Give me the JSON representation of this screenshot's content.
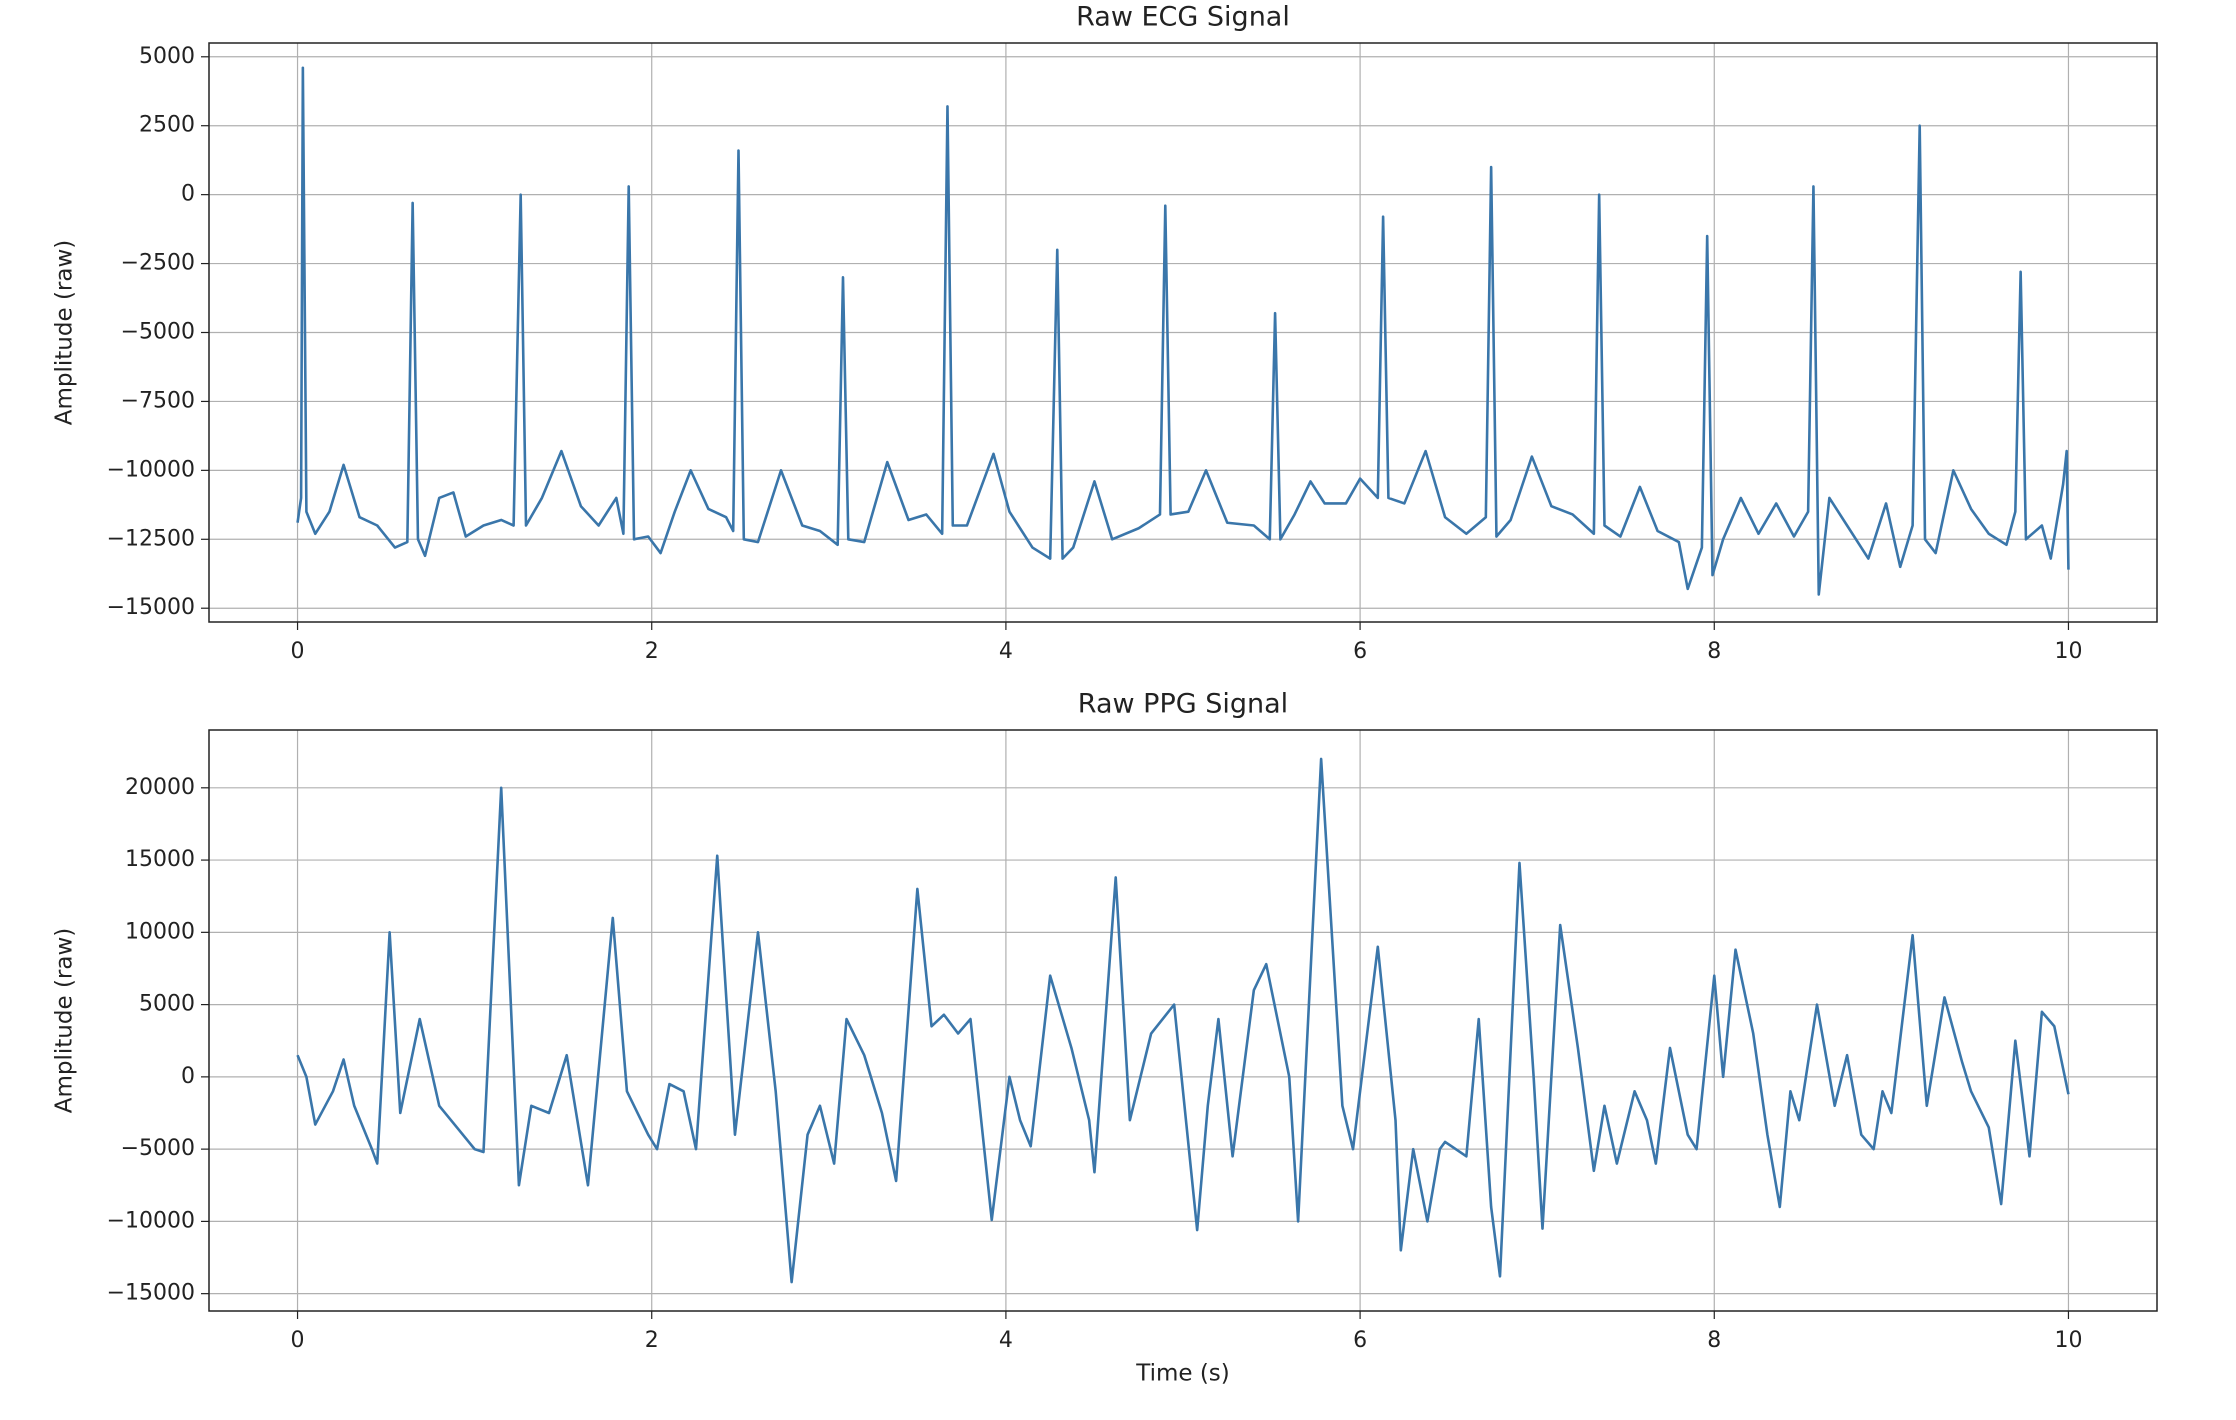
{
  "chart_data": [
    {
      "type": "line",
      "title": "Raw ECG Signal",
      "y_label": "Amplitude (raw)",
      "color": "#3a76aa",
      "grid": true,
      "xlim": [
        -0.5,
        10.5
      ],
      "ylim": [
        -15500,
        5500
      ],
      "xticks": [
        0,
        2,
        4,
        6,
        8,
        10
      ],
      "yticks": [
        5000,
        2500,
        0,
        {
          "value": -2500,
          "label": "−2500"
        },
        {
          "value": -5000,
          "label": "−5000"
        },
        {
          "value": -7500,
          "label": "−7500"
        },
        {
          "value": -10000,
          "label": "−10000"
        },
        {
          "value": -12500,
          "label": "−12500"
        },
        {
          "value": -15000,
          "label": "−15000"
        }
      ],
      "x": [
        0.0,
        0.02,
        0.03,
        0.05,
        0.1,
        0.18,
        0.26,
        0.35,
        0.45,
        0.55,
        0.62,
        0.65,
        0.68,
        0.72,
        0.8,
        0.88,
        0.95,
        1.05,
        1.15,
        1.22,
        1.26,
        1.29,
        1.38,
        1.49,
        1.6,
        1.7,
        1.8,
        1.84,
        1.87,
        1.9,
        1.98,
        2.05,
        2.13,
        2.22,
        2.32,
        2.42,
        2.46,
        2.49,
        2.52,
        2.6,
        2.73,
        2.85,
        2.95,
        3.05,
        3.08,
        3.11,
        3.2,
        3.33,
        3.45,
        3.55,
        3.64,
        3.67,
        3.7,
        3.78,
        3.93,
        4.02,
        4.15,
        4.25,
        4.29,
        4.32,
        4.38,
        4.5,
        4.6,
        4.75,
        4.87,
        4.9,
        4.93,
        5.03,
        5.13,
        5.25,
        5.4,
        5.49,
        5.52,
        5.55,
        5.63,
        5.72,
        5.8,
        5.92,
        6.0,
        6.1,
        6.13,
        6.16,
        6.25,
        6.37,
        6.48,
        6.6,
        6.71,
        6.74,
        6.77,
        6.85,
        6.97,
        7.08,
        7.2,
        7.32,
        7.35,
        7.38,
        7.47,
        7.58,
        7.68,
        7.8,
        7.85,
        7.93,
        7.96,
        7.99,
        8.05,
        8.15,
        8.25,
        8.35,
        8.45,
        8.53,
        8.56,
        8.59,
        8.65,
        8.75,
        8.87,
        8.97,
        9.05,
        9.12,
        9.16,
        9.19,
        9.25,
        9.35,
        9.45,
        9.55,
        9.65,
        9.7,
        9.73,
        9.76,
        9.85,
        9.9,
        9.97,
        9.99,
        10.0
      ],
      "values": [
        -11900,
        -11000,
        4600,
        -11500,
        -12300,
        -11500,
        -9800,
        -11700,
        -12000,
        -12800,
        -12600,
        -300,
        -12500,
        -13100,
        -11000,
        -10800,
        -12400,
        -12000,
        -11800,
        -12000,
        0,
        -12000,
        -11000,
        -9300,
        -11300,
        -12000,
        -11000,
        -12300,
        300,
        -12500,
        -12400,
        -13000,
        -11500,
        -10000,
        -11400,
        -11700,
        -12200,
        1600,
        -12500,
        -12600,
        -10000,
        -12000,
        -12200,
        -12700,
        -3000,
        -12500,
        -12600,
        -9700,
        -11800,
        -11600,
        -12300,
        3200,
        -12000,
        -12000,
        -9400,
        -11500,
        -12800,
        -13200,
        -2000,
        -13200,
        -12800,
        -10400,
        -12500,
        -12100,
        -11600,
        -400,
        -11600,
        -11500,
        -10000,
        -11900,
        -12000,
        -12500,
        -4300,
        -12500,
        -11600,
        -10400,
        -11200,
        -11200,
        -10300,
        -11000,
        -800,
        -11000,
        -11200,
        -9300,
        -11700,
        -12300,
        -11700,
        1000,
        -12400,
        -11800,
        -9500,
        -11300,
        -11600,
        -12300,
        0,
        -12000,
        -12400,
        -10600,
        -12200,
        -12600,
        -14300,
        -12800,
        -1500,
        -13800,
        -12500,
        -11000,
        -12300,
        -11200,
        -12400,
        -11500,
        300,
        -14500,
        -11000,
        -12000,
        -13200,
        -11200,
        -13500,
        -12000,
        2500,
        -12500,
        -13000,
        -10000,
        -11400,
        -12300,
        -12700,
        -11500,
        -2800,
        -12500,
        -12000,
        -13200,
        -10500,
        -9300,
        -13600
      ]
    },
    {
      "type": "line",
      "title": "Raw PPG Signal",
      "y_label": "Amplitude (raw)",
      "x_label": "Time (s)",
      "color": "#3a76aa",
      "grid": true,
      "xlim": [
        -0.5,
        10.5
      ],
      "ylim": [
        -16200,
        24000
      ],
      "xticks": [
        0,
        2,
        4,
        6,
        8,
        10
      ],
      "yticks": [
        20000,
        15000,
        10000,
        5000,
        0,
        {
          "value": -5000,
          "label": "−5000"
        },
        {
          "value": -10000,
          "label": "−10000"
        },
        {
          "value": -15000,
          "label": "−15000"
        }
      ],
      "x": [
        0,
        0.05,
        0.1,
        0.2,
        0.26,
        0.32,
        0.42,
        0.45,
        0.52,
        0.58,
        0.69,
        0.8,
        0.9,
        1.0,
        1.05,
        1.15,
        1.25,
        1.32,
        1.42,
        1.52,
        1.64,
        1.78,
        1.86,
        1.98,
        2.03,
        2.1,
        2.18,
        2.25,
        2.37,
        2.47,
        2.6,
        2.7,
        2.79,
        2.88,
        2.95,
        3.03,
        3.1,
        3.2,
        3.3,
        3.38,
        3.5,
        3.58,
        3.65,
        3.73,
        3.8,
        3.92,
        4.02,
        4.08,
        4.14,
        4.25,
        4.37,
        4.47,
        4.5,
        4.62,
        4.7,
        4.82,
        4.95,
        5.08,
        5.14,
        5.2,
        5.28,
        5.4,
        5.47,
        5.6,
        5.65,
        5.78,
        5.9,
        5.96,
        6.1,
        6.2,
        6.23,
        6.3,
        6.38,
        6.45,
        6.48,
        6.6,
        6.67,
        6.74,
        6.79,
        6.9,
        6.98,
        7.03,
        7.13,
        7.23,
        7.32,
        7.38,
        7.45,
        7.55,
        7.62,
        7.67,
        7.75,
        7.85,
        7.9,
        8.0,
        8.05,
        8.12,
        8.22,
        8.3,
        8.37,
        8.43,
        8.48,
        8.58,
        8.68,
        8.75,
        8.83,
        8.9,
        8.95,
        9.0,
        9.12,
        9.2,
        9.3,
        9.4,
        9.45,
        9.55,
        9.62,
        9.7,
        9.78,
        9.85,
        9.92,
        10.0
      ],
      "values": [
        1500,
        0,
        -3300,
        -1000,
        1200,
        -2000,
        -5000,
        -6000,
        10000,
        -2500,
        4000,
        -2000,
        -3500,
        -5000,
        -5200,
        20000,
        -7500,
        -2000,
        -2500,
        1500,
        -7500,
        11000,
        -1000,
        -4000,
        -5000,
        -500,
        -1000,
        -5000,
        15300,
        -4000,
        10000,
        -1000,
        -14200,
        -4000,
        -2000,
        -6000,
        4000,
        1500,
        -2500,
        -7200,
        13000,
        3500,
        4300,
        3000,
        4000,
        -9900,
        0,
        -3000,
        -4800,
        7000,
        2000,
        -3000,
        -6600,
        13800,
        -3000,
        3000,
        5000,
        -10600,
        -2000,
        4000,
        -5500,
        6000,
        7800,
        0,
        -10000,
        22000,
        -2000,
        -5000,
        9000,
        -3000,
        -12000,
        -5000,
        -10000,
        -5000,
        -4500,
        -5500,
        4000,
        -9000,
        -13800,
        14800,
        0,
        -10500,
        10500,
        2000,
        -6500,
        -2000,
        -6000,
        -1000,
        -3000,
        -6000,
        2000,
        -4000,
        -5000,
        7000,
        0,
        8800,
        3000,
        -4000,
        -9000,
        -1000,
        -3000,
        5000,
        -2000,
        1500,
        -4000,
        -5000,
        -1000,
        -2500,
        9800,
        -2000,
        5500,
        1000,
        -1000,
        -3500,
        -8800,
        2500,
        -5500,
        4500,
        3500,
        -1200
      ]
    }
  ]
}
